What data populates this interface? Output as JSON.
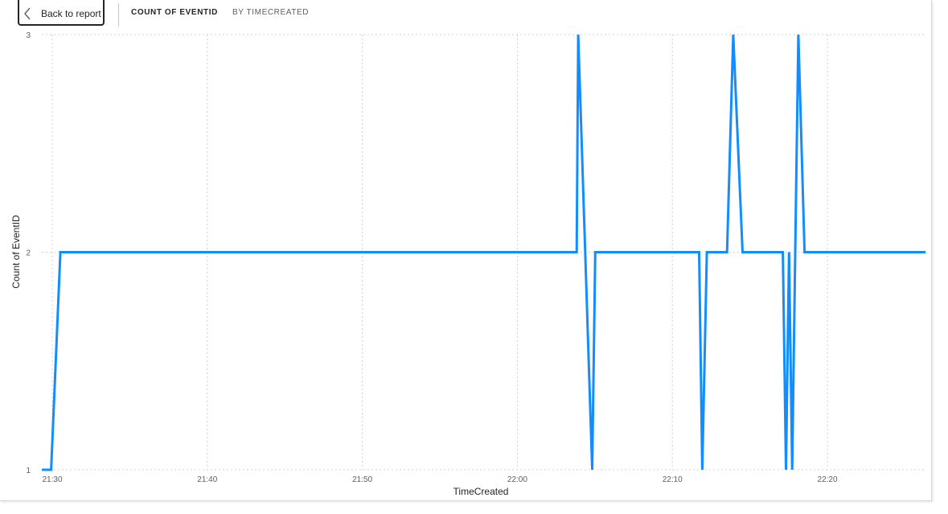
{
  "header": {
    "back_label": "Back to report",
    "measure_label": "COUNT OF EVENTID",
    "axis_label": "BY TIMECREATED"
  },
  "colors": {
    "series": "#118dff",
    "grid": "#d0d0d0"
  },
  "chart_data": {
    "type": "line",
    "title": "",
    "xlabel": "TimeCreated",
    "ylabel": "Count of EventID",
    "xlim": [
      "21:30",
      "22:27"
    ],
    "ylim": [
      1,
      3
    ],
    "x_ticks": [
      "21:30",
      "21:40",
      "21:50",
      "22:00",
      "22:10",
      "22:20"
    ],
    "y_ticks": [
      "1",
      "2",
      "3"
    ],
    "grid": true,
    "series": [
      {
        "name": "",
        "x": [
          "21:30",
          "21:30:36",
          "21:31:12",
          "22:04:30",
          "22:04:36",
          "22:05:30",
          "22:05:42",
          "22:12:24",
          "22:12:36",
          "22:12:54",
          "22:14:12",
          "22:14:36",
          "22:15:12",
          "22:17:48",
          "22:18:00",
          "22:18:12",
          "22:18:24",
          "22:18:36",
          "22:18:48",
          "22:19:12",
          "22:27"
        ],
        "values": [
          1,
          1,
          2,
          2,
          3,
          1,
          2,
          2,
          1,
          2,
          2,
          3,
          2,
          2,
          1,
          2,
          1,
          2,
          3,
          2,
          2
        ]
      }
    ]
  }
}
